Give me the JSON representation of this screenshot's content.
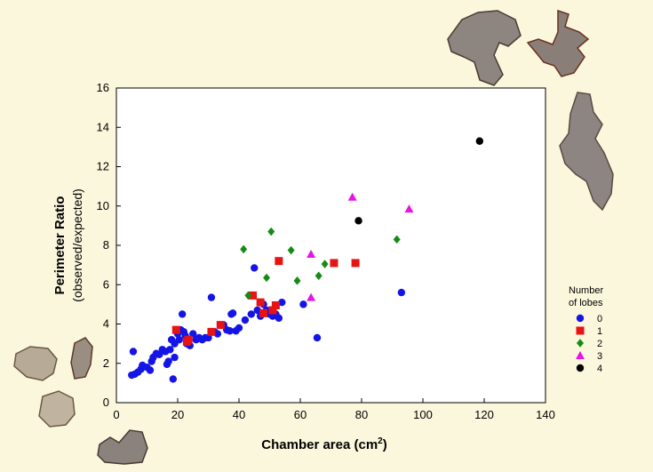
{
  "chart_data": {
    "type": "scatter",
    "xlabel_main": "Chamber area (cm",
    "xlabel_sup": "2",
    "xlabel_close": ")",
    "ylabel_main": "Perimeter Ratio",
    "ylabel_sub": "(observed/expected)",
    "xlim": [
      0,
      140
    ],
    "ylim": [
      0,
      16
    ],
    "xticks": [
      0,
      20,
      40,
      60,
      80,
      100,
      120,
      140
    ],
    "yticks": [
      0,
      2,
      4,
      6,
      8,
      10,
      12,
      14,
      16
    ],
    "grid": false,
    "legend_title_line1": "Number",
    "legend_title_line2": "of lobes",
    "legend_placement": "right",
    "series": [
      {
        "name": "0",
        "color": "#1414e6",
        "marker": "circle",
        "points": [
          [
            5,
            1.4
          ],
          [
            5.5,
            2.6
          ],
          [
            6,
            1.45
          ],
          [
            7,
            1.55
          ],
          [
            8,
            1.7
          ],
          [
            8.5,
            1.9
          ],
          [
            10,
            1.8
          ],
          [
            11,
            1.65
          ],
          [
            11.5,
            2.1
          ],
          [
            12,
            2.3
          ],
          [
            13,
            2.5
          ],
          [
            14,
            2.45
          ],
          [
            15,
            2.7
          ],
          [
            16,
            2.6
          ],
          [
            16.5,
            1.95
          ],
          [
            17,
            2.1
          ],
          [
            17.5,
            2.7
          ],
          [
            18,
            3.2
          ],
          [
            18.5,
            1.2
          ],
          [
            19,
            2.3
          ],
          [
            19,
            3
          ],
          [
            20,
            3.5
          ],
          [
            20.5,
            3.2
          ],
          [
            21,
            3.7
          ],
          [
            21.5,
            4.5
          ],
          [
            22,
            3.6
          ],
          [
            22.5,
            3.4
          ],
          [
            23,
            3
          ],
          [
            24,
            2.9
          ],
          [
            25,
            3.5
          ],
          [
            26,
            3.2
          ],
          [
            27,
            3.3
          ],
          [
            28,
            3.2
          ],
          [
            29,
            3.3
          ],
          [
            30,
            3.3
          ],
          [
            31,
            5.35
          ],
          [
            32,
            3.6
          ],
          [
            33,
            3.5
          ],
          [
            35,
            3.95
          ],
          [
            36,
            3.7
          ],
          [
            37,
            3.65
          ],
          [
            37.5,
            4.5
          ],
          [
            38,
            4.55
          ],
          [
            39,
            3.65
          ],
          [
            40,
            3.8
          ],
          [
            42,
            4.2
          ],
          [
            44,
            4.5
          ],
          [
            45,
            6.85
          ],
          [
            46,
            4.7
          ],
          [
            47,
            4.4
          ],
          [
            48,
            5
          ],
          [
            49,
            4.7
          ],
          [
            50,
            4.5
          ],
          [
            51,
            4.4
          ],
          [
            52,
            4.5
          ],
          [
            53,
            4.3
          ],
          [
            54,
            5.1
          ],
          [
            61,
            5
          ],
          [
            65.5,
            3.3
          ],
          [
            93,
            5.6
          ]
        ]
      },
      {
        "name": "1",
        "color": "#e61414",
        "marker": "square",
        "points": [
          [
            19.5,
            3.7
          ],
          [
            23,
            3.1
          ],
          [
            23.5,
            3.2
          ],
          [
            31,
            3.6
          ],
          [
            34,
            3.95
          ],
          [
            44.5,
            5.45
          ],
          [
            47,
            5.1
          ],
          [
            48,
            4.55
          ],
          [
            51,
            4.7
          ],
          [
            52,
            4.95
          ],
          [
            53,
            7.2
          ],
          [
            71,
            7.1
          ],
          [
            78,
            7.1
          ]
        ]
      },
      {
        "name": "2",
        "color": "#148c14",
        "marker": "diamond",
        "points": [
          [
            41.5,
            7.8
          ],
          [
            43,
            5.45
          ],
          [
            49,
            6.35
          ],
          [
            50.5,
            8.7
          ],
          [
            57,
            7.75
          ],
          [
            59,
            6.2
          ],
          [
            66,
            6.45
          ],
          [
            68,
            7.05
          ],
          [
            91.5,
            8.3
          ]
        ]
      },
      {
        "name": "3",
        "color": "#e614e6",
        "marker": "triangle",
        "points": [
          [
            63.5,
            5.35
          ],
          [
            63.5,
            7.55
          ],
          [
            77,
            10.45
          ],
          [
            95.5,
            9.85
          ]
        ]
      },
      {
        "name": "4",
        "color": "#000000",
        "marker": "circle",
        "points": [
          [
            79,
            9.25
          ],
          [
            118.5,
            13.3
          ]
        ]
      }
    ]
  }
}
